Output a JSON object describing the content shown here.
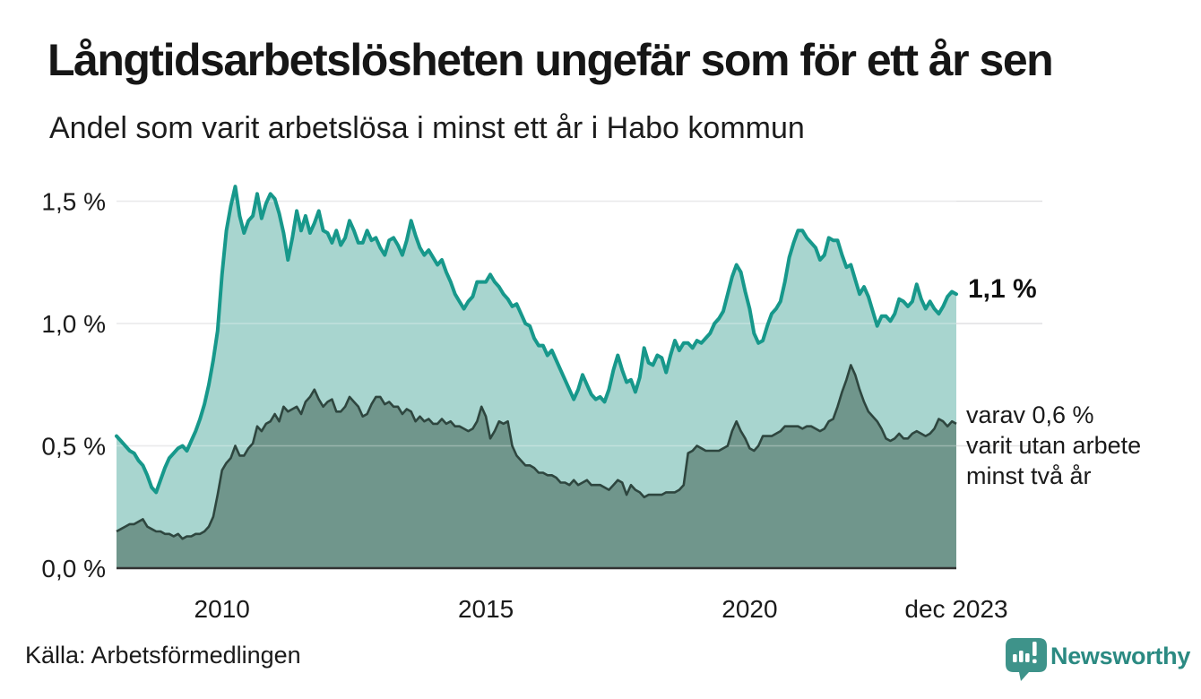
{
  "chart_data": {
    "type": "area",
    "title": "Långtidsarbetslösheten ungefär som för ett år sen",
    "subtitle": "Andel som varit arbetslösa i minst ett år i Habo kommun",
    "source": "Källa: Arbetsförmedlingen",
    "x_unit": "month",
    "x_range": [
      "jan 2008",
      "dec 2023"
    ],
    "ylim": [
      0,
      1.6
    ],
    "grid": "horizontal",
    "legend_position": "right-annotations",
    "y_ticks": [
      {
        "label": "0,0 %",
        "value": 0
      },
      {
        "label": "0,5 %",
        "value": 0.5
      },
      {
        "label": "1,0 %",
        "value": 1.0
      },
      {
        "label": "1,5 %",
        "value": 1.5
      }
    ],
    "x_ticks": [
      {
        "label": "2010",
        "month_index": 24
      },
      {
        "label": "2015",
        "month_index": 84
      },
      {
        "label": "2020",
        "month_index": 144
      },
      {
        "label": "dec 2023",
        "month_index": 191
      }
    ],
    "annotations": {
      "end_value_primary": "1,1 %",
      "secondary_lines": [
        "varav 0,6 %",
        "varit utan arbete",
        "minst två år"
      ]
    },
    "series": [
      {
        "name": "arbetslösa minst ett år",
        "end_value": 1.1,
        "values": [
          0.54,
          0.52,
          0.5,
          0.48,
          0.47,
          0.44,
          0.42,
          0.38,
          0.33,
          0.31,
          0.36,
          0.41,
          0.45,
          0.47,
          0.49,
          0.5,
          0.48,
          0.52,
          0.56,
          0.61,
          0.67,
          0.75,
          0.85,
          0.97,
          1.2,
          1.38,
          1.48,
          1.56,
          1.44,
          1.37,
          1.42,
          1.44,
          1.53,
          1.43,
          1.49,
          1.53,
          1.51,
          1.45,
          1.37,
          1.26,
          1.35,
          1.46,
          1.38,
          1.44,
          1.37,
          1.41,
          1.46,
          1.38,
          1.37,
          1.33,
          1.38,
          1.32,
          1.35,
          1.42,
          1.38,
          1.33,
          1.33,
          1.38,
          1.34,
          1.35,
          1.31,
          1.28,
          1.34,
          1.35,
          1.32,
          1.28,
          1.34,
          1.42,
          1.36,
          1.31,
          1.28,
          1.3,
          1.27,
          1.24,
          1.26,
          1.21,
          1.17,
          1.12,
          1.09,
          1.06,
          1.09,
          1.11,
          1.17,
          1.17,
          1.17,
          1.2,
          1.17,
          1.15,
          1.12,
          1.1,
          1.07,
          1.08,
          1.04,
          1.0,
          0.99,
          0.94,
          0.91,
          0.91,
          0.87,
          0.89,
          0.85,
          0.81,
          0.77,
          0.73,
          0.69,
          0.73,
          0.79,
          0.75,
          0.71,
          0.69,
          0.7,
          0.68,
          0.73,
          0.81,
          0.87,
          0.81,
          0.76,
          0.77,
          0.72,
          0.78,
          0.9,
          0.84,
          0.83,
          0.87,
          0.86,
          0.8,
          0.87,
          0.93,
          0.89,
          0.92,
          0.92,
          0.9,
          0.93,
          0.92,
          0.94,
          0.96,
          1.0,
          1.02,
          1.05,
          1.12,
          1.19,
          1.24,
          1.21,
          1.13,
          1.06,
          0.96,
          0.92,
          0.93,
          0.99,
          1.04,
          1.06,
          1.09,
          1.17,
          1.27,
          1.33,
          1.38,
          1.38,
          1.35,
          1.33,
          1.31,
          1.26,
          1.28,
          1.35,
          1.34,
          1.34,
          1.28,
          1.23,
          1.24,
          1.18,
          1.12,
          1.15,
          1.11,
          1.05,
          0.99,
          1.03,
          1.03,
          1.01,
          1.04,
          1.1,
          1.09,
          1.07,
          1.09,
          1.16,
          1.1,
          1.06,
          1.09,
          1.06,
          1.04,
          1.07,
          1.11,
          1.13,
          1.12
        ]
      },
      {
        "name": "varav utan arbete minst två år",
        "end_value": 0.6,
        "values": [
          0.15,
          0.16,
          0.17,
          0.18,
          0.18,
          0.19,
          0.2,
          0.17,
          0.16,
          0.15,
          0.15,
          0.14,
          0.14,
          0.13,
          0.14,
          0.12,
          0.13,
          0.13,
          0.14,
          0.14,
          0.15,
          0.17,
          0.21,
          0.3,
          0.4,
          0.43,
          0.45,
          0.5,
          0.46,
          0.46,
          0.49,
          0.51,
          0.58,
          0.56,
          0.59,
          0.6,
          0.63,
          0.6,
          0.66,
          0.64,
          0.65,
          0.66,
          0.63,
          0.68,
          0.7,
          0.73,
          0.69,
          0.66,
          0.68,
          0.69,
          0.64,
          0.64,
          0.66,
          0.7,
          0.68,
          0.66,
          0.62,
          0.63,
          0.67,
          0.7,
          0.7,
          0.67,
          0.68,
          0.66,
          0.66,
          0.63,
          0.65,
          0.64,
          0.6,
          0.62,
          0.6,
          0.61,
          0.59,
          0.59,
          0.61,
          0.59,
          0.6,
          0.58,
          0.58,
          0.57,
          0.56,
          0.57,
          0.6,
          0.66,
          0.62,
          0.53,
          0.56,
          0.6,
          0.59,
          0.6,
          0.5,
          0.46,
          0.44,
          0.42,
          0.42,
          0.41,
          0.39,
          0.39,
          0.38,
          0.38,
          0.37,
          0.35,
          0.35,
          0.34,
          0.36,
          0.34,
          0.35,
          0.36,
          0.34,
          0.34,
          0.34,
          0.33,
          0.32,
          0.34,
          0.36,
          0.35,
          0.3,
          0.34,
          0.32,
          0.31,
          0.29,
          0.3,
          0.3,
          0.3,
          0.3,
          0.31,
          0.31,
          0.31,
          0.32,
          0.34,
          0.47,
          0.48,
          0.5,
          0.49,
          0.48,
          0.48,
          0.48,
          0.48,
          0.49,
          0.5,
          0.56,
          0.6,
          0.56,
          0.53,
          0.49,
          0.48,
          0.5,
          0.54,
          0.54,
          0.54,
          0.55,
          0.56,
          0.58,
          0.58,
          0.58,
          0.58,
          0.57,
          0.58,
          0.58,
          0.57,
          0.56,
          0.57,
          0.6,
          0.61,
          0.66,
          0.72,
          0.77,
          0.83,
          0.79,
          0.73,
          0.68,
          0.64,
          0.62,
          0.6,
          0.57,
          0.53,
          0.52,
          0.53,
          0.55,
          0.53,
          0.53,
          0.55,
          0.56,
          0.55,
          0.54,
          0.55,
          0.57,
          0.61,
          0.6,
          0.58,
          0.6,
          0.59
        ]
      }
    ]
  },
  "logo": {
    "text": "Newsworthy"
  },
  "colors": {
    "line_primary": "#17988b",
    "fill_primary": "#a8d5cf",
    "line_secondary": "#2e463f",
    "fill_secondary": "#70968c",
    "grid": "#e1e1e3",
    "axis": "#333333",
    "text": "#1a1a1a",
    "logo": "#2b8a82",
    "logo_icon": "#3e938a"
  }
}
